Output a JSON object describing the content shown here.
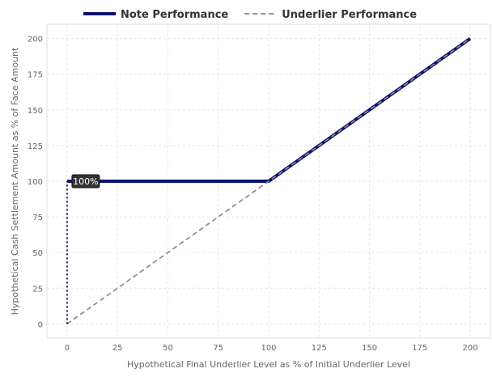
{
  "chart_data": {
    "type": "line",
    "xlabel": "Hypothetical Final Underlier Level as % of Initial Underlier Level",
    "ylabel": "Hypothetical Cash Settlement Amount as % of Face Amount",
    "xlim": [
      -10,
      210
    ],
    "ylim": [
      -10,
      210
    ],
    "x_ticks": [
      0,
      25,
      50,
      75,
      100,
      125,
      150,
      175,
      200
    ],
    "y_ticks": [
      0,
      25,
      50,
      75,
      100,
      125,
      150,
      175,
      200
    ],
    "grid": true,
    "legend_position": "top",
    "series": [
      {
        "name": "Note Performance",
        "color": "#0b1170",
        "style": "solid",
        "points": [
          [
            0,
            100
          ],
          [
            100,
            100
          ],
          [
            200,
            200
          ]
        ]
      },
      {
        "name": "Underlier Performance",
        "color": "#909090",
        "style": "dashed",
        "points": [
          [
            0,
            0
          ],
          [
            200,
            200
          ]
        ]
      }
    ],
    "reference_line": {
      "color": "#0b1170",
      "style": "dotted",
      "points": [
        [
          0,
          0
        ],
        [
          0,
          100
        ]
      ]
    },
    "annotations": [
      {
        "x": 0,
        "y": 100,
        "text": "100%"
      }
    ]
  }
}
